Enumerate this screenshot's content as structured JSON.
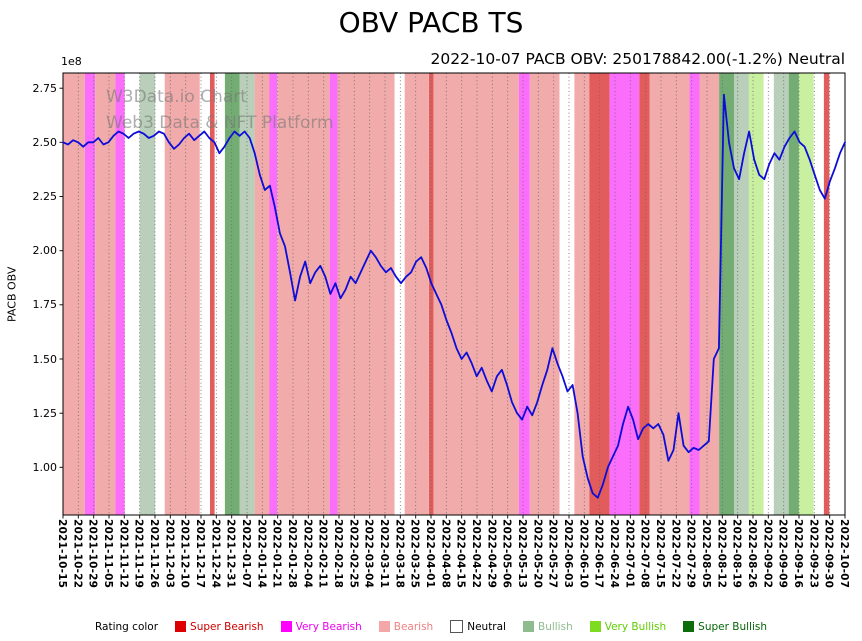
{
  "chart": {
    "title": "OBV PACB TS",
    "subtitle": "2022-10-07 PACB OBV: 250178842.00(-1.2%) Neutral",
    "ylabel": "PACB OBV",
    "offset_text": "1e8",
    "watermark_line1": "W3Data.io Chart",
    "watermark_line2": "Web3 Data & NFT Platform"
  },
  "legend": {
    "label": "Rating color",
    "items": [
      {
        "label": "Super Bearish",
        "color": "#dd0000",
        "text_color": "#cc0000"
      },
      {
        "label": "Very Bearish",
        "color": "#ff00ff",
        "text_color": "#ee00ee"
      },
      {
        "label": "Bearish",
        "color": "#f4a7a7",
        "text_color": "#f08080"
      },
      {
        "label": "Neutral",
        "color": "#ffffff",
        "text_color": "#000000"
      },
      {
        "label": "Bullish",
        "color": "#8fbc8f",
        "text_color": "#8fbc8f"
      },
      {
        "label": "Very Bullish",
        "color": "#7ddc1f",
        "text_color": "#5ecc00"
      },
      {
        "label": "Super Bullish",
        "color": "#0b6e0b",
        "text_color": "#076607"
      }
    ]
  },
  "chart_data": {
    "type": "line",
    "title": "OBV PACB TS",
    "subtitle": "2022-10-07 PACB OBV: 250178842.00(-1.2%) Neutral",
    "xlabel": "",
    "ylabel": "PACB OBV",
    "y_unit": "1e8",
    "ylim": [
      0.78,
      2.82
    ],
    "grid": "vertical-dotted",
    "legend_position": "bottom",
    "line_color": "#0d0dd8",
    "latest": {
      "date": "2022-10-07",
      "obv": 250178842.0,
      "change_pct": -1.2,
      "rating": "Neutral"
    },
    "yticks": [
      1.0,
      1.25,
      1.5,
      1.75,
      2.0,
      2.25,
      2.5,
      2.75
    ],
    "ytick_labels": [
      "1.00",
      "1.25",
      "1.50",
      "1.75",
      "2.00",
      "2.25",
      "2.50",
      "2.75"
    ],
    "x_tick_labels": [
      "2021-10-15",
      "2021-10-22",
      "2021-10-29",
      "2021-11-05",
      "2021-11-12",
      "2021-11-19",
      "2021-11-26",
      "2021-12-03",
      "2021-12-10",
      "2021-12-17",
      "2021-12-24",
      "2021-12-31",
      "2022-01-07",
      "2022-01-14",
      "2022-01-21",
      "2022-01-28",
      "2022-02-04",
      "2022-02-11",
      "2022-02-18",
      "2022-02-25",
      "2022-03-04",
      "2022-03-11",
      "2022-03-18",
      "2022-03-25",
      "2022-04-01",
      "2022-04-08",
      "2022-04-15",
      "2022-04-22",
      "2022-04-29",
      "2022-05-06",
      "2022-05-13",
      "2022-05-20",
      "2022-05-27",
      "2022-06-03",
      "2022-06-10",
      "2022-06-17",
      "2022-06-24",
      "2022-07-01",
      "2022-07-08",
      "2022-07-15",
      "2022-07-22",
      "2022-07-29",
      "2022-08-05",
      "2022-08-12",
      "2022-08-19",
      "2022-08-26",
      "2022-09-02",
      "2022-09-09",
      "2022-09-16",
      "2022-09-23",
      "2022-09-30",
      "2022-10-07"
    ],
    "series": [
      {
        "name": "PACB OBV (1e8)",
        "values": [
          2.5,
          2.49,
          2.51,
          2.5,
          2.48,
          2.5,
          2.5,
          2.52,
          2.49,
          2.5,
          2.53,
          2.55,
          2.54,
          2.52,
          2.54,
          2.55,
          2.54,
          2.52,
          2.53,
          2.55,
          2.54,
          2.5,
          2.47,
          2.49,
          2.52,
          2.54,
          2.51,
          2.53,
          2.55,
          2.52,
          2.5,
          2.45,
          2.48,
          2.52,
          2.55,
          2.53,
          2.55,
          2.52,
          2.45,
          2.35,
          2.28,
          2.3,
          2.2,
          2.08,
          2.02,
          1.9,
          1.77,
          1.88,
          1.95,
          1.85,
          1.9,
          1.93,
          1.88,
          1.8,
          1.85,
          1.78,
          1.82,
          1.88,
          1.85,
          1.9,
          1.95,
          2.0,
          1.97,
          1.93,
          1.9,
          1.92,
          1.88,
          1.85,
          1.88,
          1.9,
          1.95,
          1.97,
          1.92,
          1.85,
          1.8,
          1.75,
          1.68,
          1.62,
          1.55,
          1.5,
          1.53,
          1.48,
          1.42,
          1.46,
          1.4,
          1.35,
          1.42,
          1.45,
          1.38,
          1.3,
          1.25,
          1.22,
          1.28,
          1.24,
          1.3,
          1.38,
          1.45,
          1.55,
          1.48,
          1.42,
          1.35,
          1.38,
          1.25,
          1.05,
          0.95,
          0.88,
          0.86,
          0.92,
          1.0,
          1.05,
          1.1,
          1.2,
          1.28,
          1.22,
          1.13,
          1.18,
          1.2,
          1.18,
          1.2,
          1.15,
          1.03,
          1.08,
          1.25,
          1.1,
          1.07,
          1.09,
          1.08,
          1.1,
          1.12,
          1.5,
          1.55,
          2.72,
          2.5,
          2.38,
          2.33,
          2.45,
          2.55,
          2.42,
          2.35,
          2.33,
          2.4,
          2.45,
          2.42,
          2.48,
          2.52,
          2.55,
          2.5,
          2.48,
          2.42,
          2.35,
          2.28,
          2.24,
          2.32,
          2.38,
          2.45,
          2.5
        ]
      }
    ],
    "rating_band_colors": {
      "super_bearish": "#e25c5c",
      "very_bearish": "#fb6dfb",
      "bearish": "#f2abab",
      "neutral": "#ffffff",
      "bullish": "#b9cfb9",
      "very_bullish": "#c8f0a0",
      "super_bullish": "#74ad74"
    },
    "rating_bands": [
      {
        "from": 0.0,
        "to": 0.028,
        "rating": "bearish"
      },
      {
        "from": 0.028,
        "to": 0.041,
        "rating": "very_bearish"
      },
      {
        "from": 0.041,
        "to": 0.067,
        "rating": "bearish"
      },
      {
        "from": 0.067,
        "to": 0.079,
        "rating": "very_bearish"
      },
      {
        "from": 0.079,
        "to": 0.098,
        "rating": "neutral"
      },
      {
        "from": 0.098,
        "to": 0.118,
        "rating": "bullish"
      },
      {
        "from": 0.118,
        "to": 0.13,
        "rating": "neutral"
      },
      {
        "from": 0.13,
        "to": 0.175,
        "rating": "bearish"
      },
      {
        "from": 0.175,
        "to": 0.188,
        "rating": "neutral"
      },
      {
        "from": 0.188,
        "to": 0.194,
        "rating": "super_bearish"
      },
      {
        "from": 0.194,
        "to": 0.207,
        "rating": "neutral"
      },
      {
        "from": 0.207,
        "to": 0.226,
        "rating": "super_bullish"
      },
      {
        "from": 0.226,
        "to": 0.245,
        "rating": "bullish"
      },
      {
        "from": 0.245,
        "to": 0.264,
        "rating": "bearish"
      },
      {
        "from": 0.264,
        "to": 0.274,
        "rating": "very_bearish"
      },
      {
        "from": 0.274,
        "to": 0.341,
        "rating": "bearish"
      },
      {
        "from": 0.341,
        "to": 0.351,
        "rating": "very_bearish"
      },
      {
        "from": 0.351,
        "to": 0.424,
        "rating": "bearish"
      },
      {
        "from": 0.424,
        "to": 0.437,
        "rating": "neutral"
      },
      {
        "from": 0.437,
        "to": 0.468,
        "rating": "bearish"
      },
      {
        "from": 0.468,
        "to": 0.474,
        "rating": "super_bearish"
      },
      {
        "from": 0.474,
        "to": 0.583,
        "rating": "bearish"
      },
      {
        "from": 0.583,
        "to": 0.597,
        "rating": "very_bearish"
      },
      {
        "from": 0.597,
        "to": 0.635,
        "rating": "bearish"
      },
      {
        "from": 0.635,
        "to": 0.654,
        "rating": "neutral"
      },
      {
        "from": 0.654,
        "to": 0.673,
        "rating": "bearish"
      },
      {
        "from": 0.673,
        "to": 0.699,
        "rating": "super_bearish"
      },
      {
        "from": 0.699,
        "to": 0.737,
        "rating": "very_bearish"
      },
      {
        "from": 0.737,
        "to": 0.75,
        "rating": "super_bearish"
      },
      {
        "from": 0.75,
        "to": 0.801,
        "rating": "bearish"
      },
      {
        "from": 0.801,
        "to": 0.814,
        "rating": "very_bearish"
      },
      {
        "from": 0.814,
        "to": 0.839,
        "rating": "bearish"
      },
      {
        "from": 0.839,
        "to": 0.858,
        "rating": "super_bullish"
      },
      {
        "from": 0.858,
        "to": 0.877,
        "rating": "bullish"
      },
      {
        "from": 0.877,
        "to": 0.896,
        "rating": "very_bullish"
      },
      {
        "from": 0.896,
        "to": 0.909,
        "rating": "neutral"
      },
      {
        "from": 0.909,
        "to": 0.928,
        "rating": "bullish"
      },
      {
        "from": 0.928,
        "to": 0.941,
        "rating": "super_bullish"
      },
      {
        "from": 0.941,
        "to": 0.96,
        "rating": "very_bullish"
      },
      {
        "from": 0.96,
        "to": 0.973,
        "rating": "neutral"
      },
      {
        "from": 0.973,
        "to": 0.98,
        "rating": "super_bearish"
      },
      {
        "from": 0.98,
        "to": 1.0,
        "rating": "neutral"
      }
    ]
  }
}
